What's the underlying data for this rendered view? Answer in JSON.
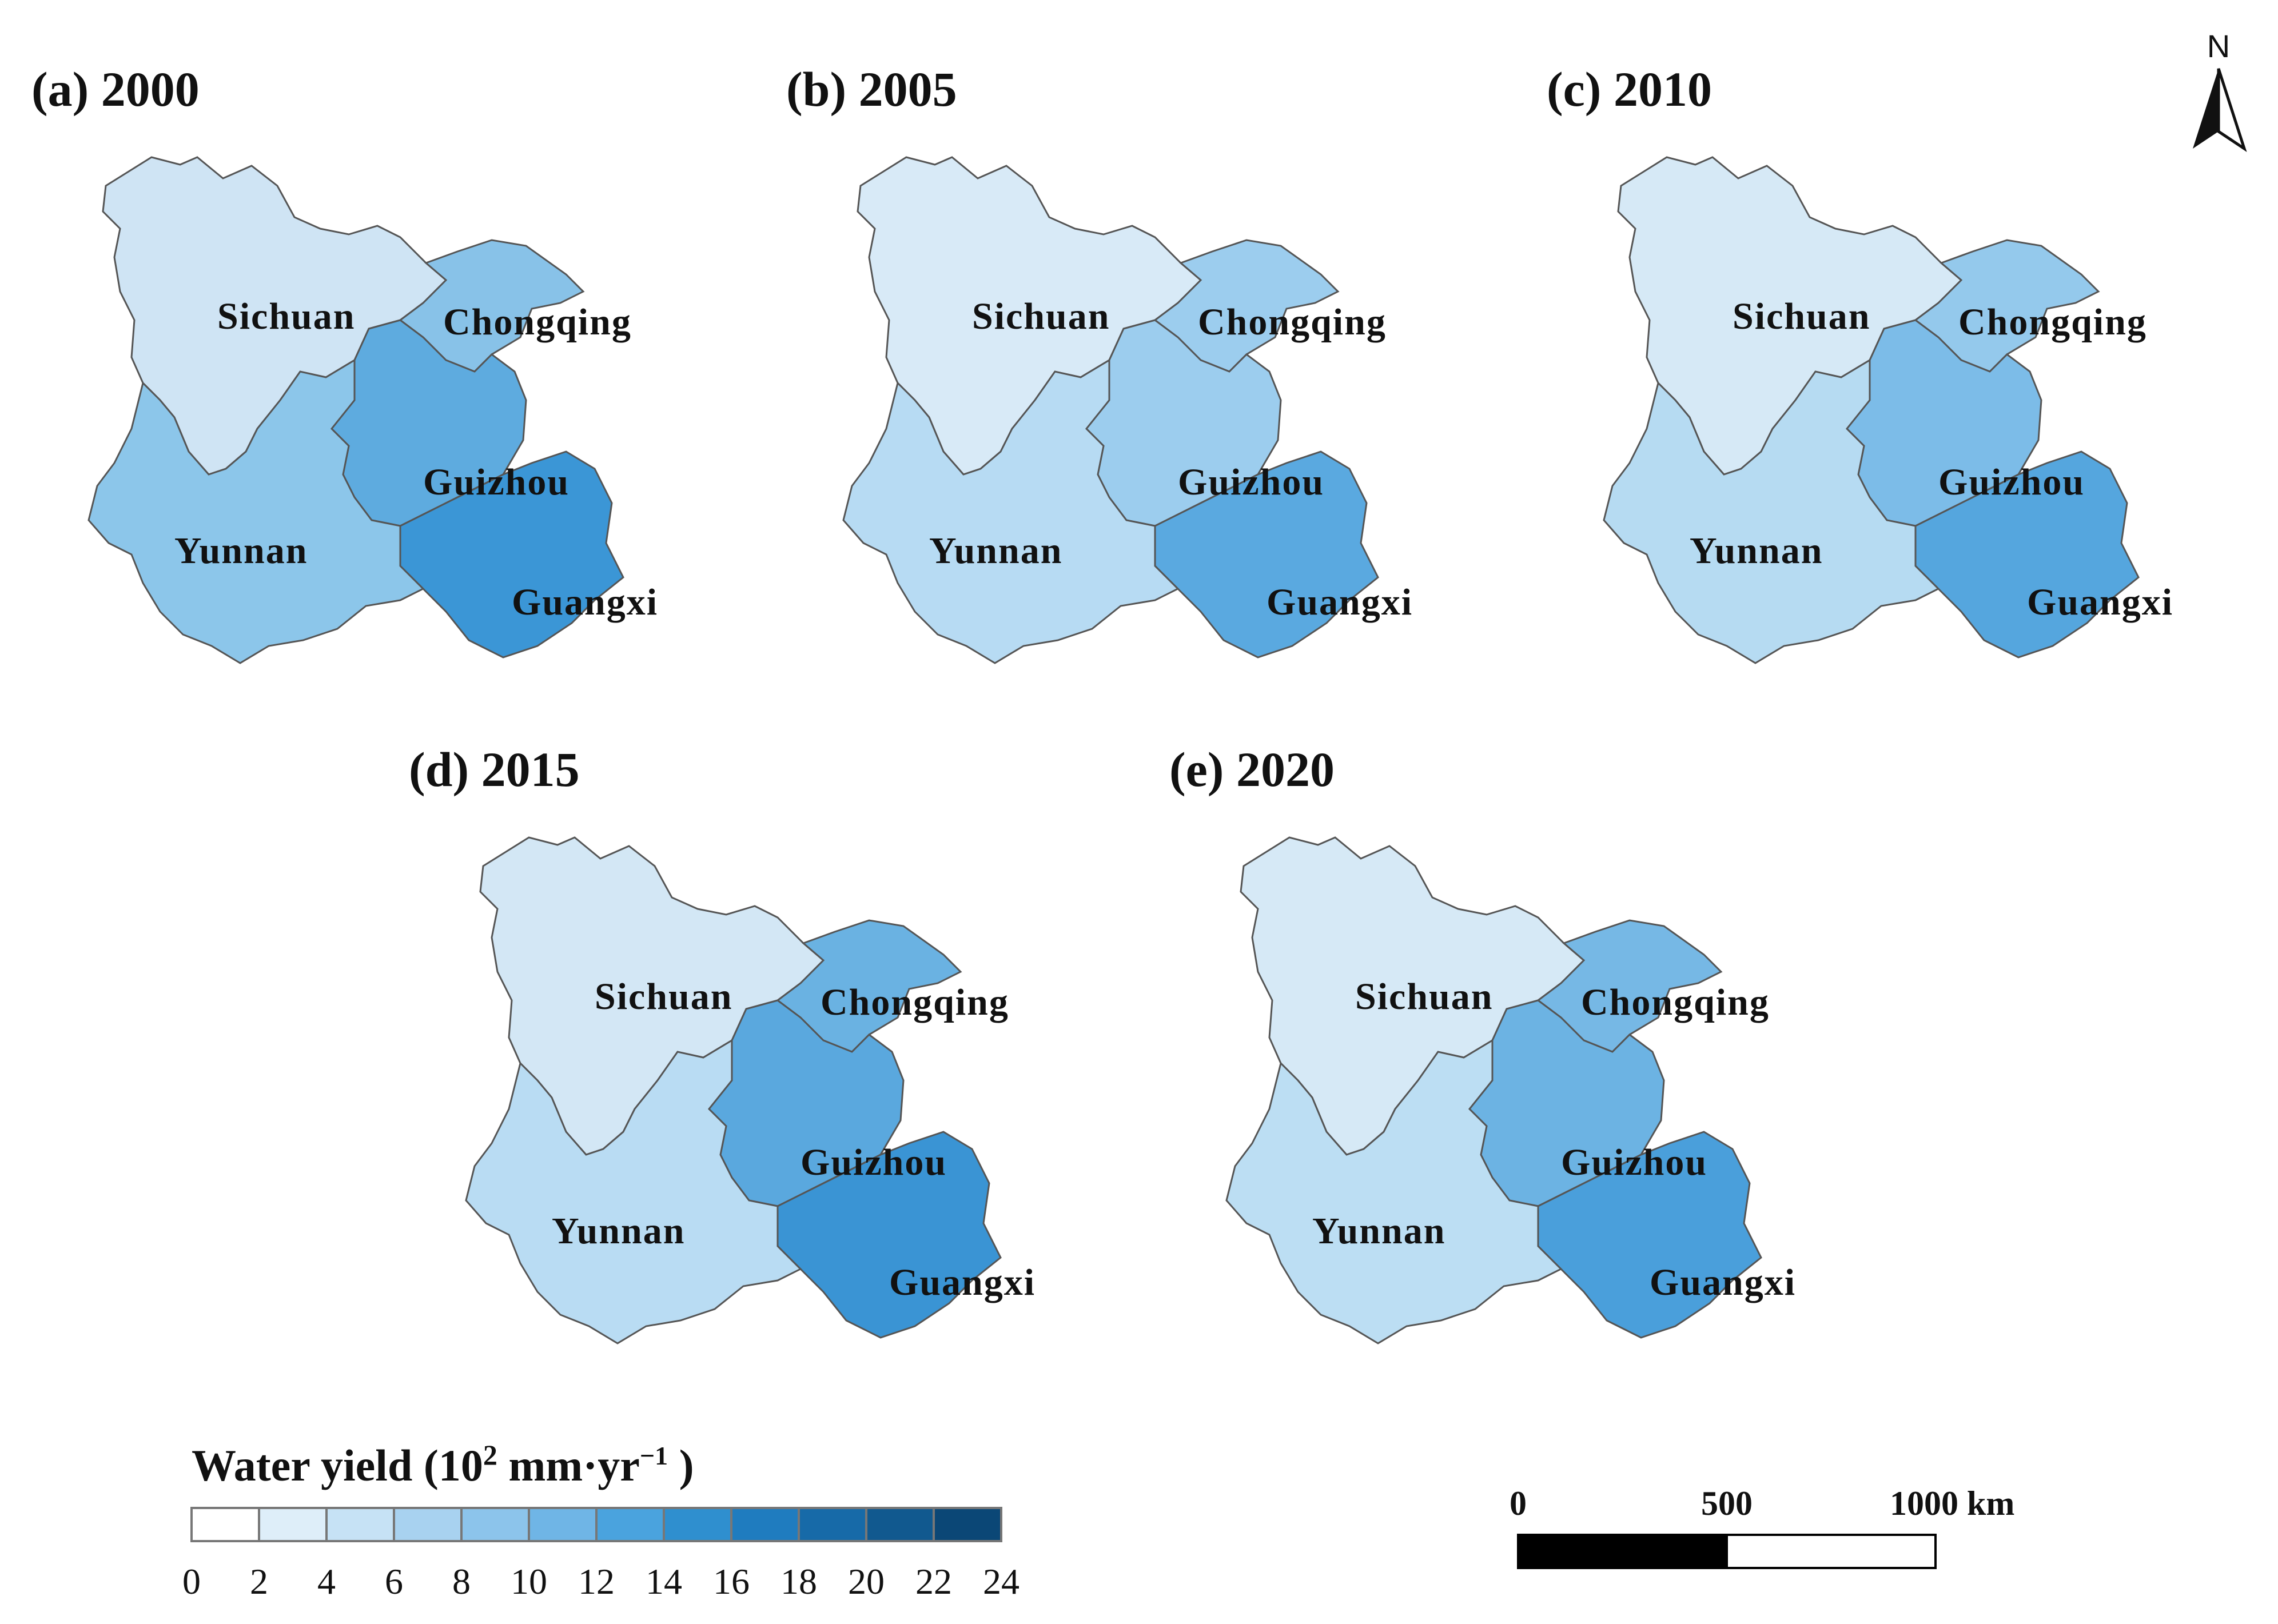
{
  "panels": [
    {
      "title": "(a) 2000",
      "regions": {
        "Sichuan": "#cfe4f4",
        "Chongqing": "#88c2e8",
        "Guizhou": "#5eabdf",
        "Guangxi": "#3b96d6",
        "Yunnan": "#8cc6ea"
      }
    },
    {
      "title": "(b) 2005",
      "regions": {
        "Sichuan": "#d8eaf7",
        "Chongqing": "#9ccdee",
        "Guizhou": "#9ccdee",
        "Guangxi": "#5aa9e0",
        "Yunnan": "#b7dbf3"
      }
    },
    {
      "title": "(c) 2010",
      "regions": {
        "Sichuan": "#d6e9f6",
        "Chongqing": "#94c9ec",
        "Guizhou": "#7cbce8",
        "Guangxi": "#55a6de",
        "Yunnan": "#b6dbf2"
      }
    },
    {
      "title": "(d) 2015",
      "regions": {
        "Sichuan": "#d3e7f5",
        "Chongqing": "#6ab2e2",
        "Guizhou": "#5aa8de",
        "Guangxi": "#3a94d4",
        "Yunnan": "#b9dcf3"
      }
    },
    {
      "title": "(e) 2020",
      "regions": {
        "Sichuan": "#d6e9f6",
        "Chongqing": "#76b8e5",
        "Guizhou": "#6cb3e3",
        "Guangxi": "#4a9fdb",
        "Yunnan": "#bcdef3"
      }
    }
  ],
  "province_labels": {
    "sichuan": "Sichuan",
    "chongqing": "Chongqing",
    "guizhou": "Guizhou",
    "yunnan": "Yunnan",
    "guangxi": "Guangxi"
  },
  "legend": {
    "title_main": "Water yield (10",
    "title_exp": "2",
    "title_unit": " mm·yr",
    "title_unit_exp": "−1",
    "title_close": " )",
    "bins": [
      "#ffffff",
      "#deeef9",
      "#c6e2f5",
      "#a8d2f0",
      "#8cc4eb",
      "#6fb5e6",
      "#4aa3de",
      "#2f8fcf",
      "#1f7cbf",
      "#176aa8",
      "#11598f",
      "#0b4776"
    ],
    "ticks": [
      "0",
      "2",
      "4",
      "6",
      "8",
      "10",
      "12",
      "14",
      "16",
      "18",
      "20",
      "22",
      "24"
    ]
  },
  "scale_bar": {
    "ticks": [
      "0",
      "500",
      "1000 km"
    ]
  },
  "north_arrow": {
    "label": "N"
  }
}
